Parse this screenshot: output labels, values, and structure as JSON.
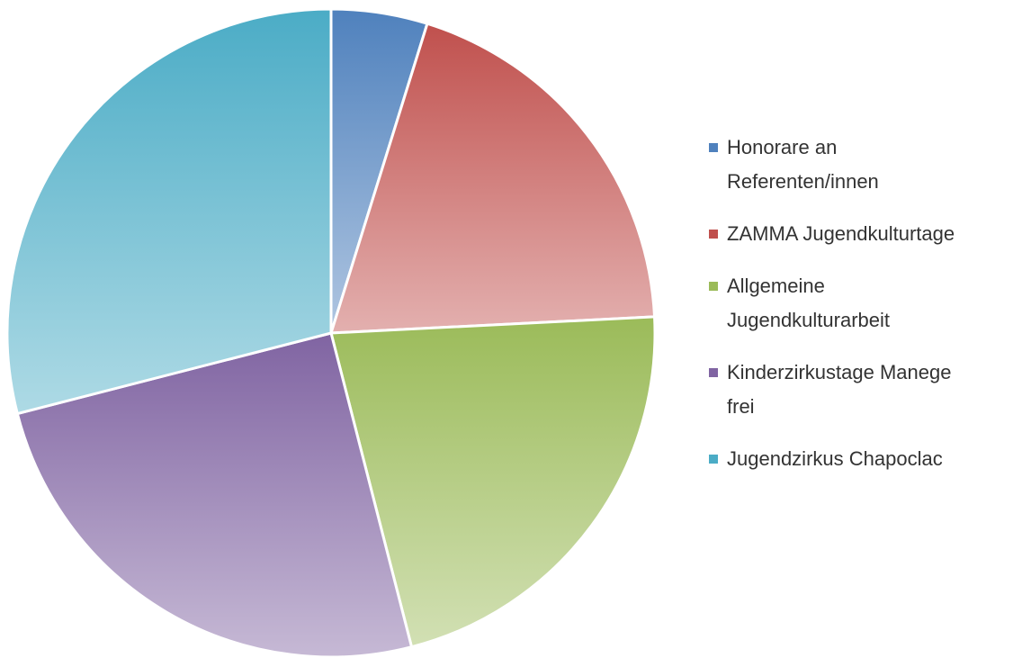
{
  "chart_data": {
    "type": "pie",
    "categories": [
      "Honorare an Referenten/innen",
      "ZAMMA Jugendkulturtage",
      "Allgemeine Jugendkulturarbeit",
      "Kinderzirkustage Manege frei",
      "Jugendzirkus Chapoclac"
    ],
    "values": [
      4.8,
      19.4,
      21.8,
      25,
      29
    ],
    "colors": [
      "#4f81bd",
      "#c0504d",
      "#9bbb59",
      "#8064a2",
      "#4bacc6"
    ],
    "legend": "right"
  }
}
